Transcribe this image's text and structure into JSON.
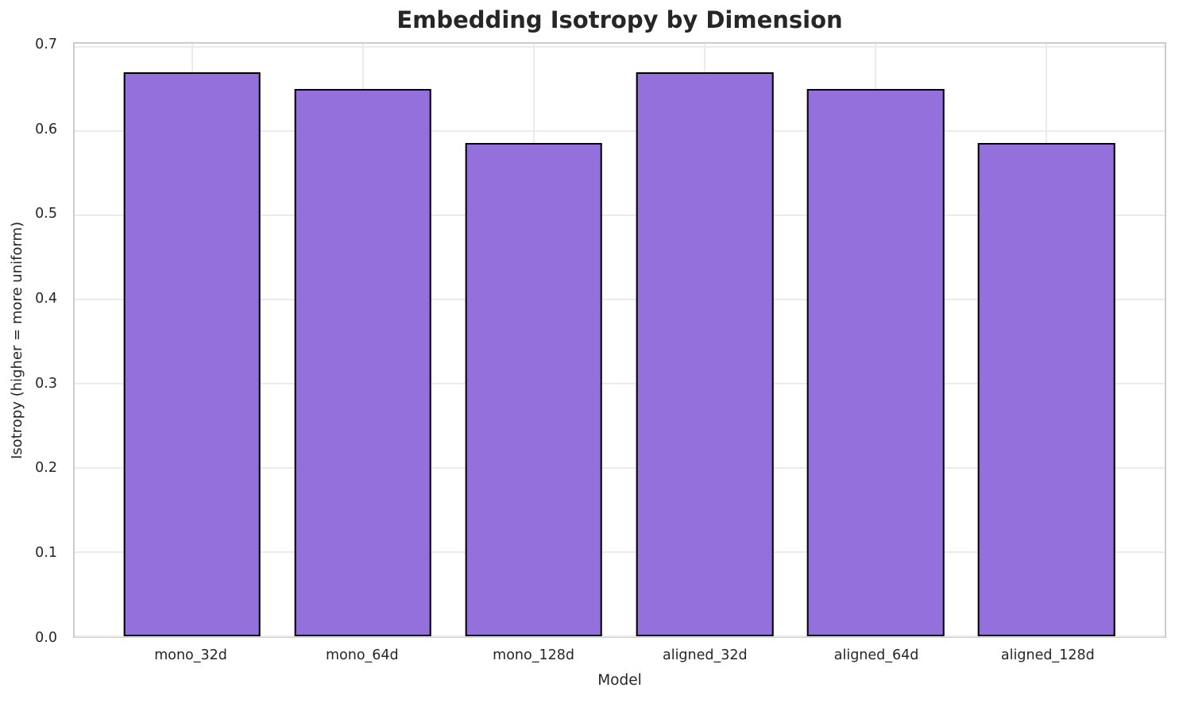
{
  "chart_data": {
    "type": "bar",
    "title": "Embedding Isotropy by Dimension",
    "xlabel": "Model",
    "ylabel": "Isotropy (higher = more uniform)",
    "categories": [
      "mono_32d",
      "mono_64d",
      "mono_128d",
      "aligned_32d",
      "aligned_64d",
      "aligned_128d"
    ],
    "values": [
      0.67,
      0.65,
      0.586,
      0.67,
      0.65,
      0.586
    ],
    "ylim": [
      0,
      0.7035
    ],
    "yticks": [
      0.0,
      0.1,
      0.2,
      0.3,
      0.4,
      0.5,
      0.6,
      0.7
    ],
    "ytick_labels": [
      "0.0",
      "0.1",
      "0.2",
      "0.3",
      "0.4",
      "0.5",
      "0.6",
      "0.7"
    ],
    "grid": true,
    "legend": false,
    "colors": {
      "bar_fill": "#9370DB",
      "bar_edge": "#000000",
      "grid": "#ebebeb",
      "spine": "#cccccc",
      "text": "#262626",
      "background": "#ffffff"
    }
  }
}
